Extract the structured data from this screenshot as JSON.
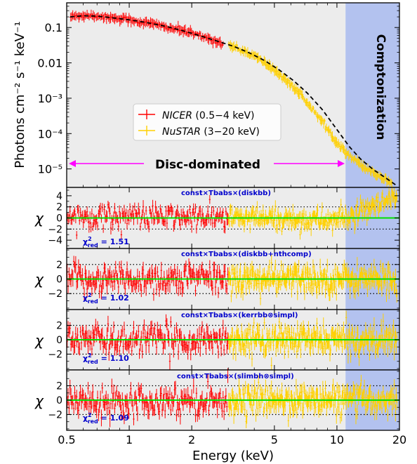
{
  "chart_data": [
    {
      "type": "scatter",
      "panel": "spectrum",
      "xscale": "log",
      "yscale": "log",
      "xlim": [
        0.5,
        20
      ],
      "ylim": [
        3e-06,
        0.5
      ],
      "ylabel": "Photons cm⁻² s⁻¹ keV⁻¹",
      "y_ticks": [
        1e-05,
        0.0001,
        0.001,
        0.01,
        0.1
      ],
      "y_tick_labels": [
        "10⁻⁵",
        "10⁻⁴",
        "10⁻³",
        "0.01",
        "0.1"
      ],
      "series": [
        {
          "name": "NICER",
          "range": "(0.5−4 keV)",
          "color": "#ff0000",
          "x": [
            0.52,
            0.56,
            0.6,
            0.65,
            0.7,
            0.76,
            0.82,
            0.9,
            0.98,
            1.06,
            1.15,
            1.25,
            1.36,
            1.48,
            1.6,
            1.75,
            1.9,
            2.05,
            2.25,
            2.45,
            2.65,
            2.85
          ],
          "y": [
            0.2,
            0.21,
            0.22,
            0.22,
            0.21,
            0.2,
            0.19,
            0.18,
            0.17,
            0.155,
            0.14,
            0.13,
            0.12,
            0.105,
            0.095,
            0.085,
            0.075,
            0.065,
            0.055,
            0.047,
            0.04,
            0.035
          ]
        },
        {
          "name": "NuSTAR",
          "range": "(3−20 keV)",
          "color": "#ffd000",
          "x": [
            3.0,
            3.3,
            3.6,
            4.0,
            4.4,
            4.8,
            5.3,
            5.8,
            6.3,
            7.0,
            7.7,
            8.5,
            9.3,
            10.2,
            11.2,
            12.3,
            13.5,
            15.0,
            16.5,
            18.5
          ],
          "y": [
            0.032,
            0.026,
            0.021,
            0.0155,
            0.011,
            0.0075,
            0.0048,
            0.0029,
            0.0018,
            0.00092,
            0.00046,
            0.00021,
            0.0001,
            5e-05,
            2.8e-05,
            1.7e-05,
            1.15e-05,
            8e-06,
            5.7e-06,
            4e-06
          ]
        },
        {
          "name": "model",
          "style": "dashed",
          "color": "#000000",
          "x": [
            0.52,
            0.6,
            0.7,
            0.82,
            1.0,
            1.2,
            1.5,
            1.8,
            2.2,
            2.7,
            3.2,
            3.8,
            4.5,
            5.3,
            6.2,
            7.2,
            8.5,
            10.0,
            11.5,
            13.0,
            15.0,
            17.0,
            19.5
          ],
          "y": [
            0.2,
            0.215,
            0.21,
            0.19,
            0.165,
            0.14,
            0.108,
            0.082,
            0.058,
            0.04,
            0.029,
            0.019,
            0.0115,
            0.0062,
            0.0031,
            0.0014,
            0.00048,
            0.00013,
            4.2e-05,
            1.9e-05,
            9.5e-06,
            5.8e-06,
            3.3e-06
          ]
        }
      ],
      "regions": [
        {
          "name": "Disc-dominated",
          "x": [
            0.5,
            11
          ],
          "color": "#ececec"
        },
        {
          "name": "Comptonization",
          "x": [
            11,
            20
          ],
          "color": "#b3c2ef"
        }
      ],
      "legend": "center",
      "annotations": [
        "Disc-dominated",
        "Comptonization"
      ]
    },
    {
      "type": "scatter",
      "panel": "residuals-1",
      "model": "const×Tbabs×(diskbb)",
      "chi2_red": "1.51",
      "ylabel": "χ",
      "ylim": [
        -5.5,
        5.5
      ],
      "y_ticks": [
        -4,
        -2,
        0,
        2,
        4
      ],
      "trend": {
        "x": [
          0.5,
          1.0,
          2.0,
          3.0,
          5.0,
          8.0,
          10.0,
          11.0,
          13.0,
          16.0,
          19.5
        ],
        "y": [
          0.3,
          0.3,
          0.1,
          0.0,
          -0.2,
          -0.4,
          -0.3,
          0.0,
          0.8,
          2.2,
          3.6
        ]
      }
    },
    {
      "type": "scatter",
      "panel": "residuals-2",
      "model": "const×Tbabs×(diskbb+nthcomp)",
      "chi2_red": "1.02",
      "ylabel": "χ",
      "ylim": [
        -4.2,
        4.2
      ],
      "y_ticks": [
        -2,
        0,
        2
      ],
      "trend": {
        "x": [
          0.5,
          20
        ],
        "y": [
          0,
          0
        ]
      }
    },
    {
      "type": "scatter",
      "panel": "residuals-3",
      "model": "const×Tbabs×(kerrbb⊗simpl)",
      "chi2_red": "1.10",
      "ylabel": "χ",
      "ylim": [
        -4.2,
        4.2
      ],
      "y_ticks": [
        -2,
        0,
        2
      ],
      "trend": {
        "x": [
          0.5,
          20
        ],
        "y": [
          0,
          0
        ]
      }
    },
    {
      "type": "scatter",
      "panel": "residuals-4",
      "model": "const×Tbabs×(slimbh⊗simpl)",
      "chi2_red": "1.09",
      "ylabel": "χ",
      "ylim": [
        -4.2,
        4.2
      ],
      "y_ticks": [
        -2,
        0,
        2
      ],
      "trend": {
        "x": [
          0.5,
          20
        ],
        "y": [
          0,
          0
        ]
      }
    }
  ],
  "xaxis": {
    "label": "Energy (keV)",
    "ticks": [
      0.5,
      1,
      2,
      5,
      10,
      20
    ],
    "tick_labels": [
      "0.5",
      "1",
      "2",
      "5",
      "10",
      "20"
    ],
    "scale": "log"
  },
  "colors": {
    "nicer": "#ff0000",
    "nustar": "#ffd000",
    "zero_line": "#00e000",
    "arrow": "#ff00ff",
    "model_label": "#0000cc",
    "disc_region": "#ececec",
    "compt_region": "#b3c2ef"
  }
}
